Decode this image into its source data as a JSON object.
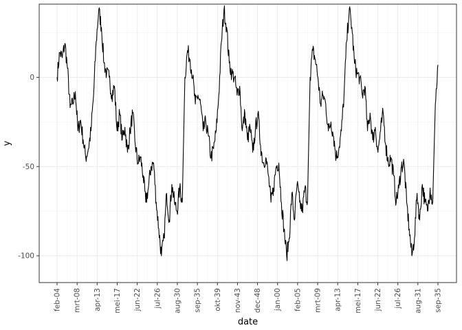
{
  "chart_data": {
    "type": "line",
    "xlabel": "date",
    "ylabel": "y",
    "x_ticks": [
      "feb-04",
      "mrt-08",
      "apr-13",
      "mei-17",
      "jun-22",
      "jul-26",
      "aug-30",
      "sep-35",
      "okt-39",
      "nov-43",
      "dec-48",
      "jan-00",
      "feb-05",
      "mrt-09",
      "apr-13",
      "mei-17",
      "jun-22",
      "jul-26",
      "aug-31",
      "sep-35"
    ],
    "y_ticks": [
      0,
      -50,
      -100
    ],
    "y_tick_labels": [
      "0",
      "-50",
      "-100"
    ],
    "ylim": [
      -115,
      41
    ],
    "grid": true,
    "legend": "none",
    "colors": {
      "line": "#000000",
      "panel_border": "#333333",
      "grid_major": "#ebebeb",
      "grid_minor": "#f5f5f5"
    },
    "series": [
      {
        "values": [
          0,
          14,
          11,
          19,
          5,
          -17,
          -15,
          -8,
          -30,
          -24,
          -35,
          -45,
          -40,
          -30,
          -10,
          20,
          38,
          28,
          8,
          2,
          0,
          -10,
          -5,
          -30,
          -20,
          -35,
          -28,
          -42,
          -30,
          -20,
          -38,
          -48,
          -45,
          -55,
          -70,
          -62,
          -50,
          -48,
          -70,
          -85,
          -100,
          -90,
          -65,
          -80,
          -60,
          -70,
          -75,
          -62,
          -70,
          0,
          15,
          10,
          0,
          -15,
          -10,
          -15,
          -30,
          -25,
          -33,
          -45,
          -40,
          -30,
          -10,
          20,
          38,
          28,
          8,
          2,
          0,
          -10,
          -5,
          -30,
          -20,
          -35,
          -28,
          -42,
          -30,
          -20,
          -38,
          -48,
          -45,
          -55,
          -70,
          -62,
          -50,
          -48,
          -70,
          -85,
          -100,
          -90,
          -65,
          -80,
          -60,
          -70,
          -75,
          -62,
          -70,
          0,
          15,
          10,
          0,
          -15,
          -10,
          -15,
          -30,
          -25,
          -33,
          -45,
          -40,
          -30,
          -10,
          20,
          38,
          28,
          8,
          2,
          0,
          -10,
          -5,
          -30,
          -20,
          -35,
          -28,
          -42,
          -30,
          -20,
          -38,
          -48,
          -45,
          -55,
          -70,
          -62,
          -50,
          -48,
          -70,
          -85,
          -100,
          -90,
          -65,
          -80,
          -60,
          -70,
          -75,
          -62,
          -70,
          -15,
          7
        ]
      }
    ]
  }
}
